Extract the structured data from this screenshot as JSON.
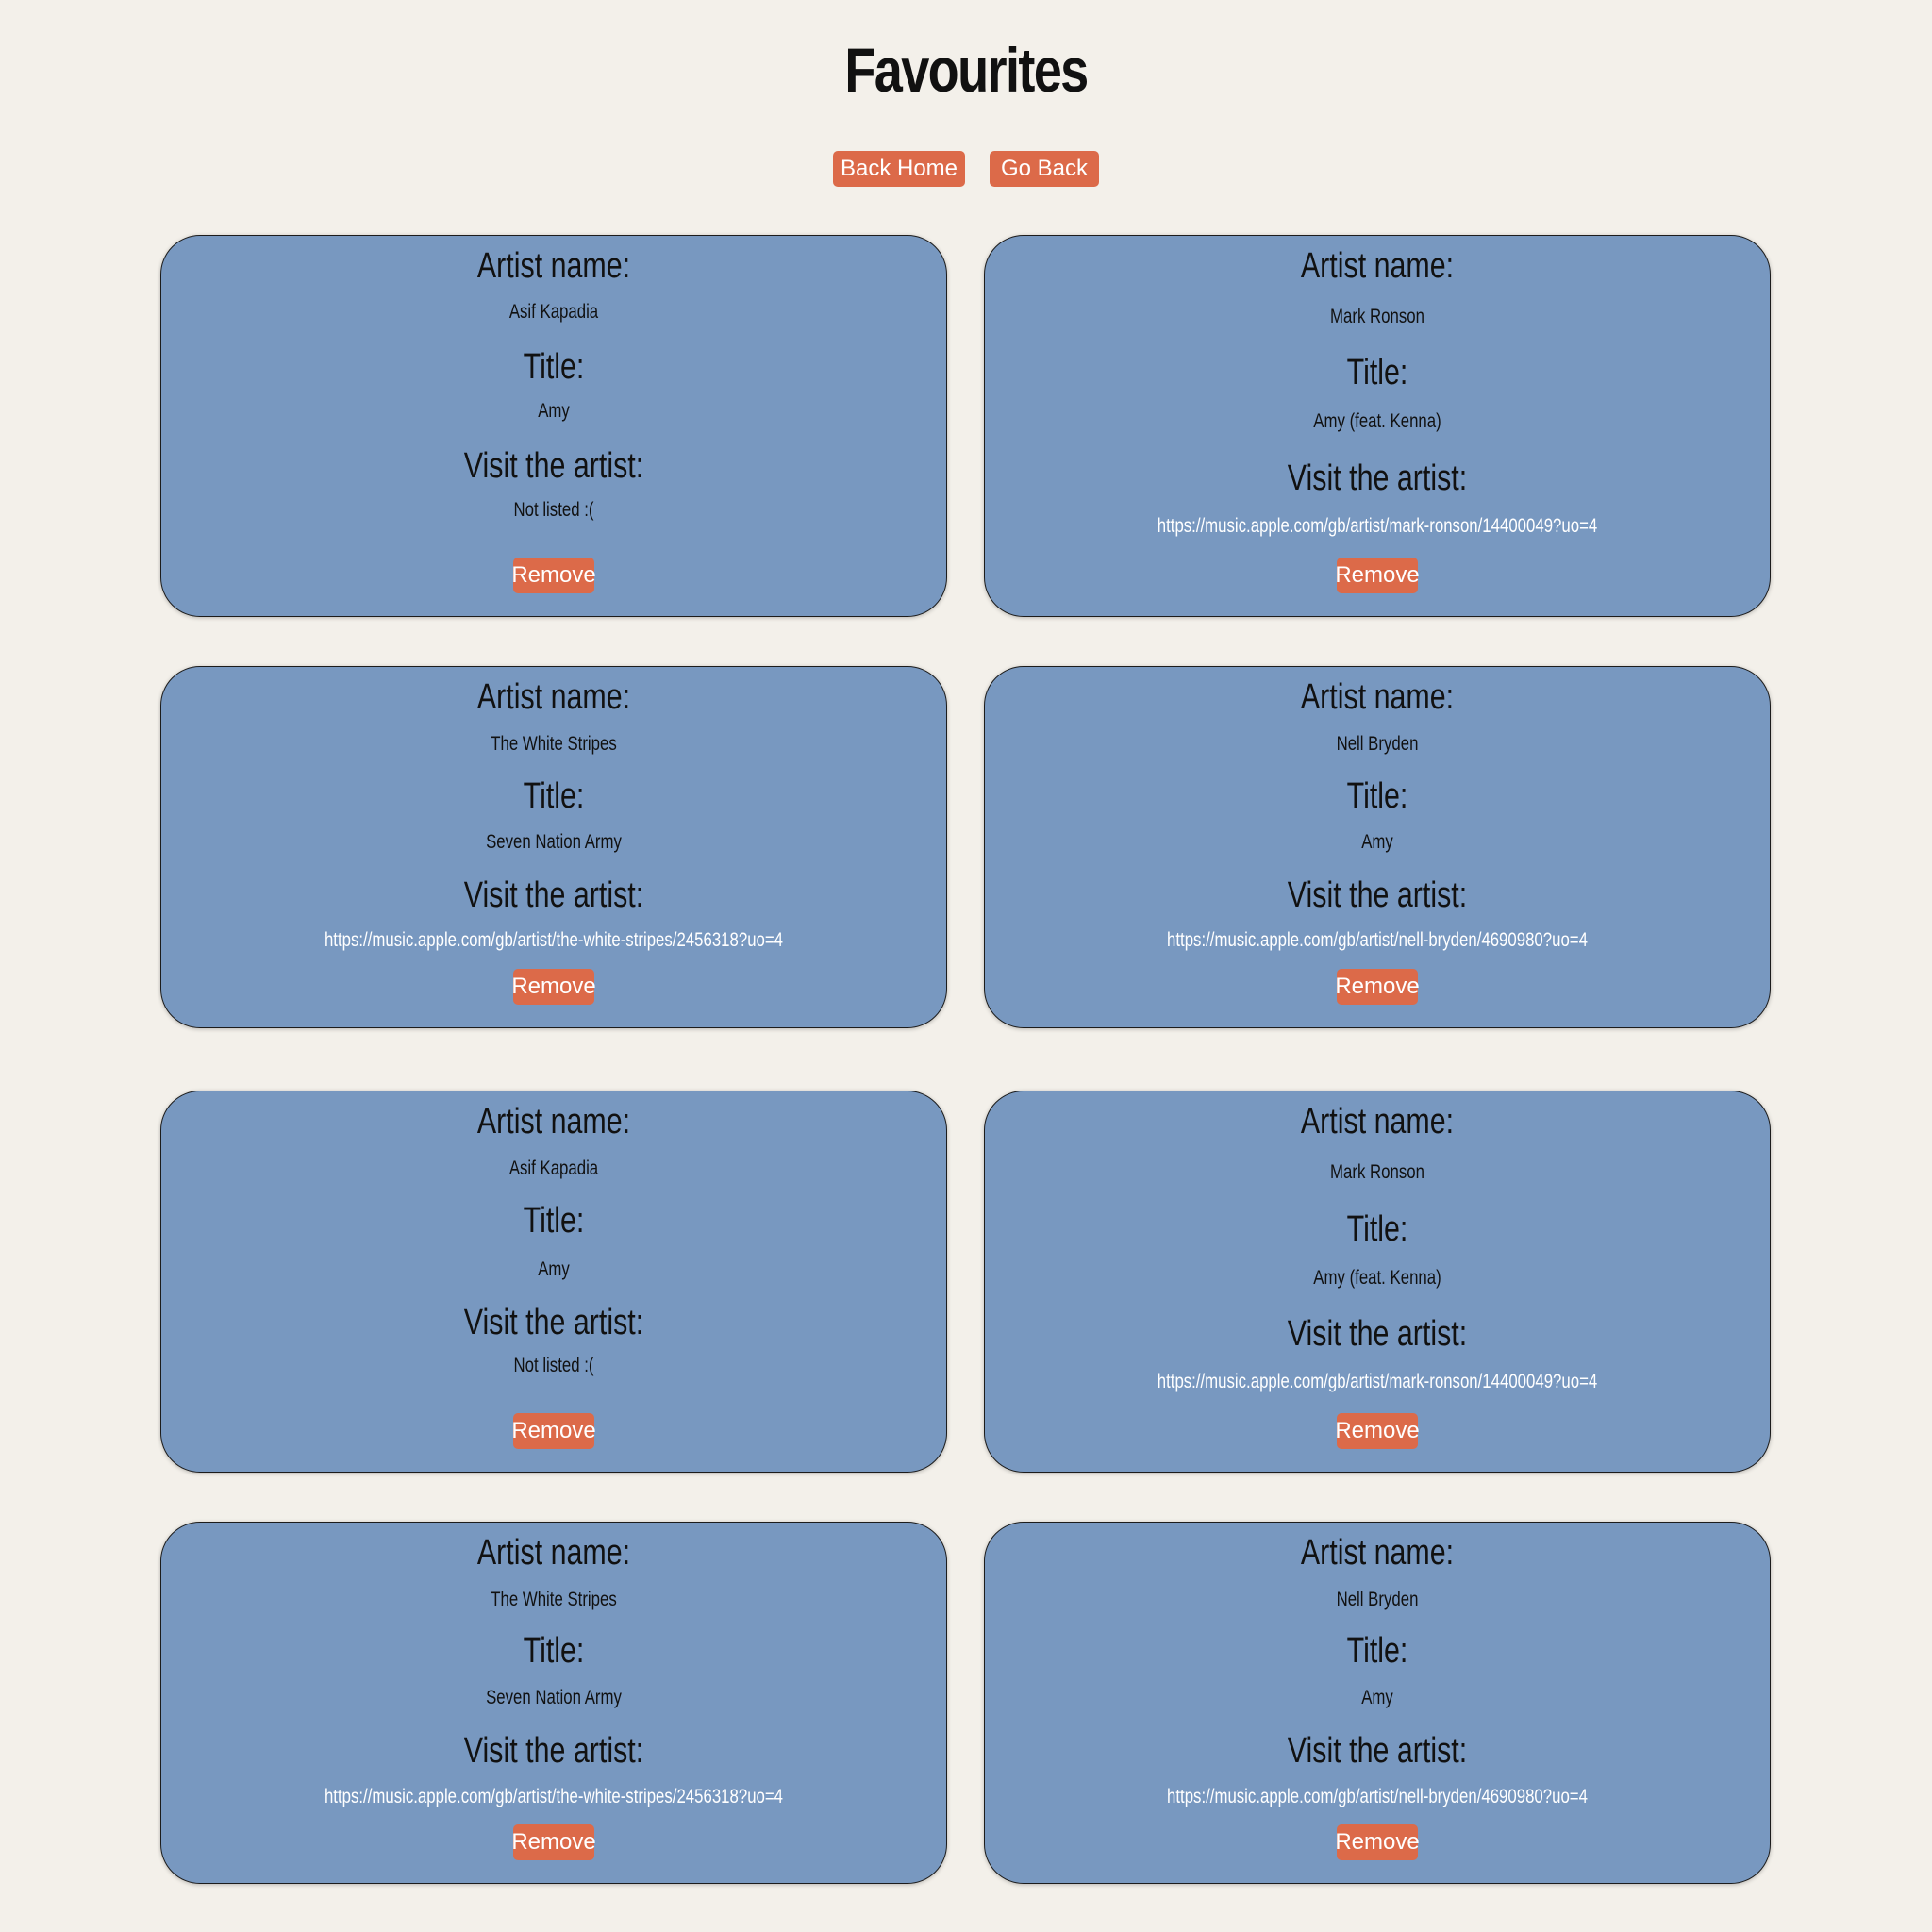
{
  "header": {
    "title": "Favourites"
  },
  "nav": {
    "back_home": "Back Home",
    "go_back": "Go Back"
  },
  "labels": {
    "artist_name": "Artist name:",
    "title": "Title:",
    "visit": "Visit the artist:",
    "remove": "Remove"
  },
  "favourites": [
    {
      "artist": "Asif Kapadia",
      "title": "Amy",
      "link": "Not listed :("
    },
    {
      "artist": "Mark Ronson",
      "title": "Amy (feat. Kenna)",
      "link": "https://music.apple.com/gb/artist/mark-ronson/14400049?uo=4"
    },
    {
      "artist": "The White Stripes",
      "title": "Seven Nation Army",
      "link": "https://music.apple.com/gb/artist/the-white-stripes/2456318?uo=4"
    },
    {
      "artist": "Nell Bryden",
      "title": "Amy",
      "link": "https://music.apple.com/gb/artist/nell-bryden/4690980?uo=4"
    },
    {
      "artist": "Asif Kapadia",
      "title": "Amy",
      "link": "Not listed :("
    },
    {
      "artist": "Mark Ronson",
      "title": "Amy (feat. Kenna)",
      "link": "https://music.apple.com/gb/artist/mark-ronson/14400049?uo=4"
    },
    {
      "artist": "The White Stripes",
      "title": "Seven Nation Army",
      "link": "https://music.apple.com/gb/artist/the-white-stripes/2456318?uo=4"
    },
    {
      "artist": "Nell Bryden",
      "title": "Amy",
      "link": "https://music.apple.com/gb/artist/nell-bryden/4690980?uo=4"
    }
  ],
  "colors": {
    "background": "#f3f0ea",
    "card": "#7898c0",
    "button": "#dc6a49",
    "link_text": "#ffffff"
  }
}
